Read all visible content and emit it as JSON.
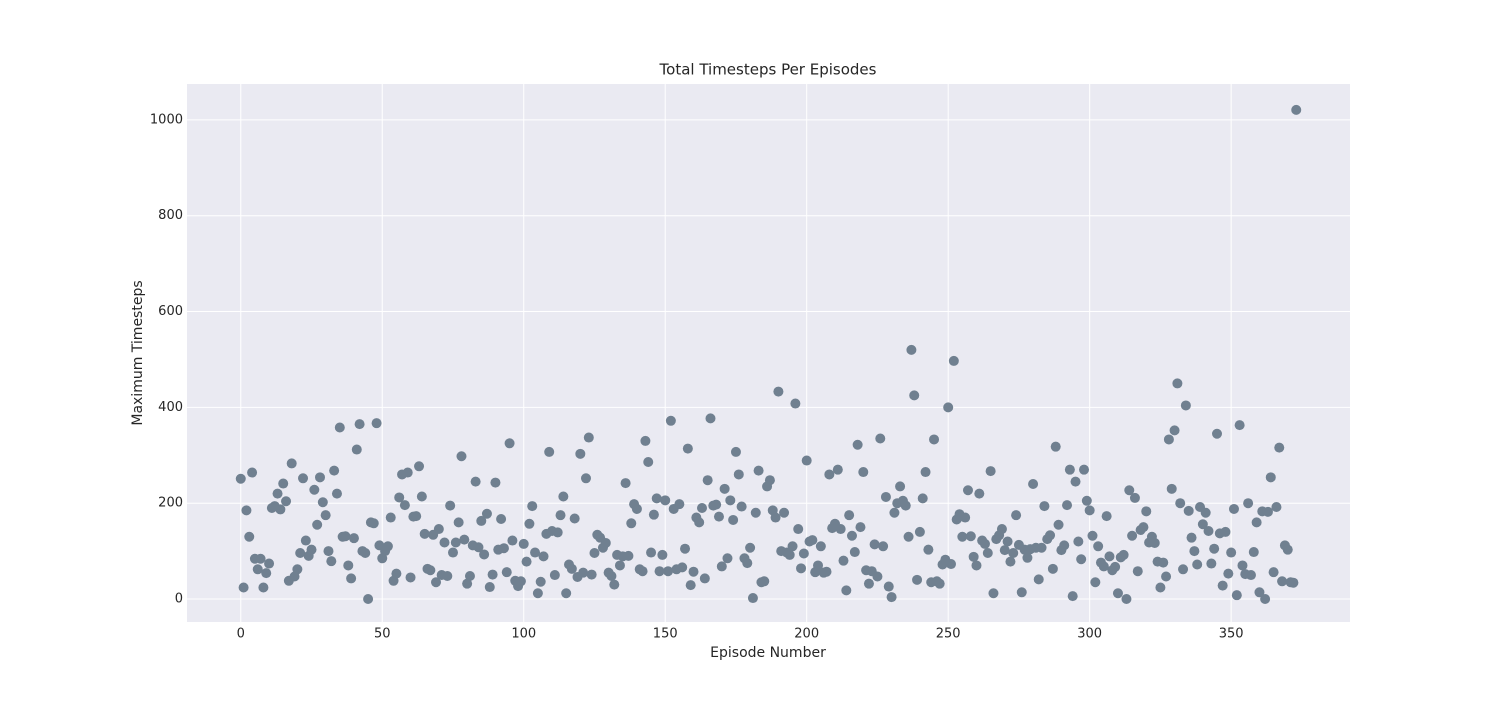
{
  "chart_data": {
    "type": "scatter",
    "title": "Total Timesteps Per Episodes",
    "x_label": "Episode Number",
    "y_label": "Maximum Timesteps",
    "color": "#708090",
    "grid": true,
    "xlim": [
      -19,
      392
    ],
    "ylim": [
      -48,
      1075
    ],
    "xticks": [
      0,
      50,
      100,
      150,
      200,
      250,
      300,
      350
    ],
    "yticks": [
      0,
      200,
      400,
      600,
      800,
      1000
    ],
    "x": [
      0,
      1,
      2,
      3,
      4,
      5,
      6,
      7,
      8,
      9,
      10,
      11,
      12,
      13,
      14,
      15,
      16,
      17,
      18,
      19,
      20,
      21,
      22,
      23,
      24,
      25,
      26,
      27,
      28,
      29,
      30,
      31,
      32,
      33,
      34,
      35,
      36,
      37,
      38,
      39,
      40,
      41,
      42,
      43,
      44,
      45,
      46,
      47,
      48,
      49,
      50,
      51,
      52,
      53,
      54,
      55,
      56,
      57,
      58,
      59,
      60,
      61,
      62,
      63,
      64,
      65,
      66,
      67,
      68,
      69,
      70,
      71,
      72,
      73,
      74,
      75,
      76,
      77,
      78,
      79,
      80,
      81,
      82,
      83,
      84,
      85,
      86,
      87,
      88,
      89,
      90,
      91,
      92,
      93,
      94,
      95,
      96,
      97,
      98,
      99,
      100,
      101,
      102,
      103,
      104,
      105,
      106,
      107,
      108,
      109,
      110,
      111,
      112,
      113,
      114,
      115,
      116,
      117,
      118,
      119,
      120,
      121,
      122,
      123,
      124,
      125,
      126,
      127,
      128,
      129,
      130,
      131,
      132,
      133,
      134,
      135,
      136,
      137,
      138,
      139,
      140,
      141,
      142,
      143,
      144,
      145,
      146,
      147,
      148,
      149,
      150,
      151,
      152,
      153,
      154,
      155,
      156,
      157,
      158,
      159,
      160,
      161,
      162,
      163,
      164,
      165,
      166,
      167,
      168,
      169,
      170,
      171,
      172,
      173,
      174,
      175,
      176,
      177,
      178,
      179,
      180,
      181,
      182,
      183,
      184,
      185,
      186,
      187,
      188,
      189,
      190,
      191,
      192,
      193,
      194,
      195,
      196,
      197,
      198,
      199,
      200,
      201,
      202,
      203,
      204,
      205,
      206,
      207,
      208,
      209,
      210,
      211,
      212,
      213,
      214,
      215,
      216,
      217,
      218,
      219,
      220,
      221,
      222,
      223,
      224,
      225,
      226,
      227,
      228,
      229,
      230,
      231,
      232,
      233,
      234,
      235,
      236,
      237,
      238,
      239,
      240,
      241,
      242,
      243,
      244,
      245,
      246,
      247,
      248,
      249,
      250,
      251,
      252,
      253,
      254,
      255,
      256,
      257,
      258,
      259,
      260,
      261,
      262,
      263,
      264,
      265,
      266,
      267,
      268,
      269,
      270,
      271,
      272,
      273,
      274,
      275,
      276,
      277,
      278,
      279,
      280,
      281,
      282,
      283,
      284,
      285,
      286,
      287,
      288,
      289,
      290,
      291,
      292,
      293,
      294,
      295,
      296,
      297,
      298,
      299,
      300,
      301,
      302,
      303,
      304,
      305,
      306,
      307,
      308,
      309,
      310,
      311,
      312,
      313,
      314,
      315,
      316,
      317,
      318,
      319,
      320,
      321,
      322,
      323,
      324,
      325,
      326,
      327,
      328,
      329,
      330,
      331,
      332,
      333,
      334,
      335,
      336,
      337,
      338,
      339,
      340,
      341,
      342,
      343,
      344,
      345,
      346,
      347,
      348,
      349,
      350,
      351,
      352,
      353,
      354,
      355,
      356,
      357,
      358,
      359,
      360,
      361,
      362,
      363,
      364,
      365,
      366,
      367,
      368,
      369,
      370,
      371,
      372,
      373
    ],
    "values": [
      251,
      24,
      185,
      130,
      264,
      84,
      62,
      84,
      24,
      54,
      74,
      190,
      194,
      220,
      187,
      241,
      204,
      38,
      283,
      47,
      62,
      96,
      252,
      122,
      90,
      103,
      228,
      155,
      254,
      202,
      175,
      100,
      79,
      268,
      220,
      358,
      130,
      131,
      70,
      43,
      127,
      312,
      365,
      100,
      96,
      0,
      160,
      158,
      367,
      112,
      85,
      100,
      110,
      170,
      38,
      53,
      212,
      260,
      196,
      264,
      45,
      172,
      173,
      277,
      214,
      136,
      63,
      60,
      134,
      35,
      146,
      50,
      118,
      48,
      195,
      97,
      118,
      160,
      298,
      124,
      32,
      48,
      112,
      245,
      108,
      163,
      93,
      178,
      25,
      51,
      243,
      103,
      167,
      106,
      56,
      325,
      122,
      38,
      27,
      37,
      115,
      78,
      157,
      194,
      97,
      12,
      36,
      89,
      136,
      307,
      142,
      50,
      139,
      175,
      214,
      12,
      72,
      63,
      168,
      46,
      303,
      55,
      252,
      337,
      51,
      96,
      134,
      128,
      107,
      117,
      55,
      48,
      30,
      92,
      70,
      89,
      242,
      90,
      158,
      198,
      188,
      62,
      58,
      330,
      286,
      97,
      176,
      210,
      58,
      92,
      206,
      58,
      372,
      188,
      62,
      198,
      66,
      105,
      314,
      29,
      57,
      170,
      160,
      190,
      43,
      248,
      377,
      195,
      197,
      172,
      68,
      230,
      85,
      206,
      165,
      307,
      260,
      193,
      85,
      75,
      107,
      2,
      180,
      268,
      35,
      37,
      235,
      248,
      185,
      170,
      433,
      100,
      180,
      97,
      92,
      110,
      408,
      146,
      64,
      95,
      289,
      120,
      123,
      56,
      70,
      110,
      55,
      57,
      260,
      148,
      157,
      270,
      146,
      80,
      18,
      175,
      132,
      98,
      322,
      150,
      265,
      60,
      32,
      58,
      114,
      47,
      335,
      110,
      213,
      26,
      4,
      180,
      200,
      235,
      205,
      195,
      130,
      520,
      425,
      40,
      140,
      210,
      265,
      103,
      35,
      333,
      37,
      32,
      72,
      82,
      400,
      73,
      497,
      166,
      177,
      130,
      170,
      227,
      131,
      88,
      70,
      220,
      122,
      115,
      96,
      267,
      12,
      125,
      133,
      146,
      102,
      120,
      78,
      96,
      175,
      113,
      14,
      103,
      86,
      104,
      240,
      107,
      41,
      107,
      194,
      125,
      133,
      63,
      318,
      155,
      102,
      112,
      196,
      270,
      6,
      245,
      120,
      83,
      270,
      205,
      185,
      132,
      35,
      110,
      76,
      68,
      173,
      89,
      60,
      67,
      12,
      87,
      92,
      0,
      227,
      132,
      211,
      58,
      144,
      150,
      183,
      118,
      130,
      117,
      78,
      24,
      76,
      47,
      333,
      230,
      352,
      450,
      200,
      62,
      404,
      184,
      128,
      100,
      72,
      192,
      156,
      180,
      142,
      74,
      105,
      345,
      137,
      28,
      140,
      53,
      97,
      188,
      8,
      363,
      70,
      52,
      200,
      50,
      98,
      160,
      14,
      183,
      0,
      182,
      254,
      56,
      192,
      316,
      37,
      112,
      103,
      35,
      34,
      1021
    ]
  }
}
